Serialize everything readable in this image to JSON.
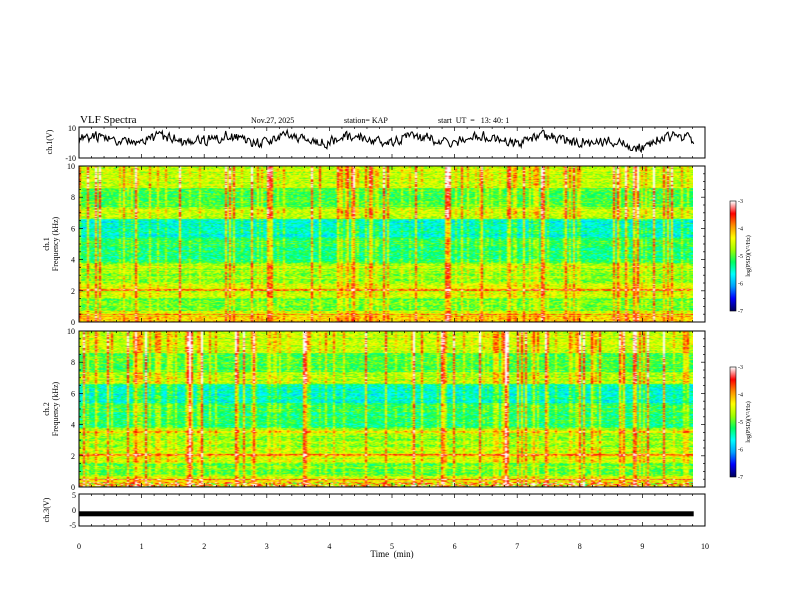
{
  "header": {
    "title": "VLF Spectra",
    "date": "Nov.27, 2025",
    "station": "station= KAP",
    "start_ut": "start  UT  =   13: 40: 1"
  },
  "colors": {
    "colormap": [
      "#000060",
      "#0000ff",
      "#00a0ff",
      "#00ffff",
      "#00ff60",
      "#a0ff00",
      "#ffff00",
      "#ff9000",
      "#ff0000",
      "#ffffff"
    ]
  },
  "chart_data": [
    {
      "type": "line",
      "name": "ch1-waveform",
      "ylabel": "ch.1(V)",
      "ylim": [
        -10,
        10
      ],
      "yticks": [
        "10",
        "-10"
      ],
      "xlim": [
        0,
        10
      ],
      "data_extent_min": 9.82,
      "amplitude_range_V": [
        -6,
        8
      ]
    },
    {
      "type": "heatmap",
      "name": "ch1-spectrogram",
      "ylabel_channel": "ch.1",
      "ylabel": "Frequency  (kHz)",
      "ylim": [
        0,
        10
      ],
      "yticks": [
        "0",
        "2",
        "4",
        "6",
        "8",
        "10"
      ],
      "xlim": [
        0,
        10
      ],
      "colorbar": {
        "label": "log(PSD)(V²/Hz)",
        "range": [
          -7,
          -3
        ],
        "ticks": [
          "-3",
          "-4",
          "-5",
          "-6",
          "-7"
        ]
      }
    },
    {
      "type": "heatmap",
      "name": "ch2-spectrogram",
      "ylabel_channel": "ch.2",
      "ylabel": "Frequency  (kHz)",
      "ylim": [
        0,
        10
      ],
      "yticks": [
        "0",
        "2",
        "4",
        "6",
        "8",
        "10"
      ],
      "xlim": [
        0,
        10
      ],
      "colorbar": {
        "label": "log(PSD)(V²/Hz)",
        "range": [
          -7,
          -3
        ],
        "ticks": [
          "-3",
          "-4",
          "-5",
          "-6",
          "-7"
        ]
      }
    },
    {
      "type": "line",
      "name": "ch3-waveform",
      "ylabel": "ch.3(V)",
      "ylim": [
        -5,
        5
      ],
      "yticks": [
        "5",
        "0",
        "-5"
      ],
      "xlim": [
        0,
        10
      ],
      "level_V": -1.2
    }
  ],
  "xaxis": {
    "label": "Time  (min)",
    "ticks": [
      "0",
      "1",
      "2",
      "3",
      "4",
      "5",
      "6",
      "7",
      "8",
      "9",
      "10"
    ]
  }
}
